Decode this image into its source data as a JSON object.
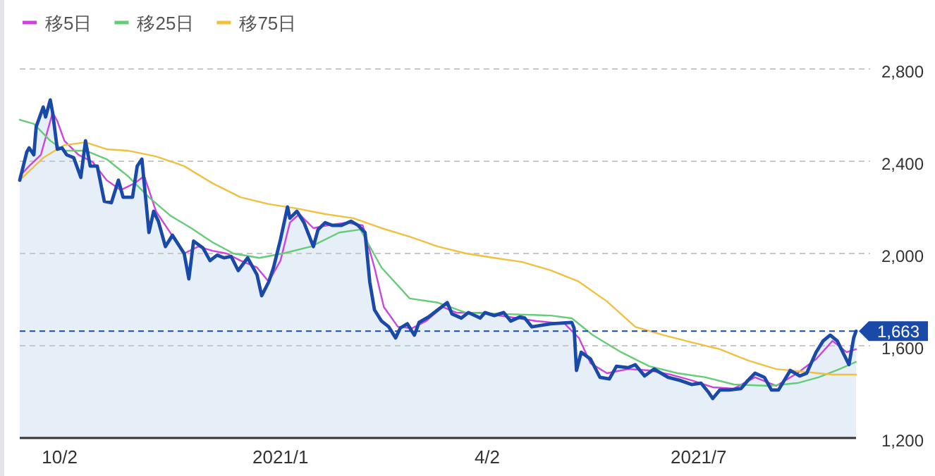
{
  "chart_data": {
    "type": "line",
    "legend": "top left",
    "grid": "y",
    "tick_labels": "xy",
    "xlim": [
      "2020-09-15",
      "2021-09-06"
    ],
    "xticks": [
      {
        "value": "2020-10-02",
        "label": "10/2"
      },
      {
        "value": "2021-01-04",
        "label": "2021/1"
      },
      {
        "value": "2021-04-02",
        "label": "4/2"
      },
      {
        "value": "2021-07-01",
        "label": "2021/7"
      }
    ],
    "ylim": [
      1200,
      2800
    ],
    "yticks": [
      {
        "value": 1200,
        "label": "1,200"
      },
      {
        "value": 1600,
        "label": "1,600"
      },
      {
        "value": 2000,
        "label": "2,000"
      },
      {
        "value": 2400,
        "label": "2,400"
      },
      {
        "value": 2800,
        "label": "2,800"
      }
    ],
    "ref_lines": [
      {
        "axis": "y",
        "value": 1663,
        "label": "1,663",
        "color": "#1a4aa8",
        "line_style": "dashed"
      }
    ],
    "series": [
      {
        "type": "area",
        "color": "#1a4aa8",
        "x": [
          "2020-09-15",
          "2020-09-18",
          "2020-09-19",
          "2020-09-21",
          "2020-09-22",
          "2020-09-25",
          "2020-09-26",
          "2020-09-28",
          "2020-09-29",
          "2020-10-01",
          "2020-10-03",
          "2020-10-05",
          "2020-10-08",
          "2020-10-11",
          "2020-10-13",
          "2020-10-15",
          "2020-10-18",
          "2020-10-21",
          "2020-10-24",
          "2020-10-27",
          "2020-10-29",
          "2020-11-02",
          "2020-11-04",
          "2020-11-06",
          "2020-11-09",
          "2020-11-11",
          "2020-11-13",
          "2020-11-16",
          "2020-11-19",
          "2020-11-24",
          "2020-11-26",
          "2020-11-28",
          "2020-12-02",
          "2020-12-05",
          "2020-12-08",
          "2020-12-11",
          "2020-12-14",
          "2020-12-17",
          "2020-12-21",
          "2020-12-25",
          "2020-12-27",
          "2020-12-30",
          "2021-01-01",
          "2021-01-04",
          "2021-01-07",
          "2021-01-08",
          "2021-01-11",
          "2021-01-14",
          "2021-01-18",
          "2021-01-20",
          "2021-01-23",
          "2021-01-26",
          "2021-01-30",
          "2021-02-03",
          "2021-02-06",
          "2021-02-09",
          "2021-02-11",
          "2021-02-13",
          "2021-02-16",
          "2021-02-19",
          "2021-02-22",
          "2021-02-24",
          "2021-02-27",
          "2021-03-02",
          "2021-03-04",
          "2021-03-08",
          "2021-03-12",
          "2021-03-16",
          "2021-03-18",
          "2021-03-22",
          "2021-03-25",
          "2021-03-30",
          "2021-04-01",
          "2021-04-05",
          "2021-04-09",
          "2021-04-12",
          "2021-04-16",
          "2021-04-18",
          "2021-04-21",
          "2021-04-29",
          "2021-05-08",
          "2021-05-09",
          "2021-05-10",
          "2021-05-12",
          "2021-05-16",
          "2021-05-20",
          "2021-05-24",
          "2021-05-27",
          "2021-06-01",
          "2021-06-04",
          "2021-06-08",
          "2021-06-12",
          "2021-06-18",
          "2021-06-23",
          "2021-06-28",
          "2021-07-02",
          "2021-07-05",
          "2021-07-07",
          "2021-07-10",
          "2021-07-14",
          "2021-07-19",
          "2021-07-22",
          "2021-07-25",
          "2021-07-29",
          "2021-08-01",
          "2021-08-04",
          "2021-08-09",
          "2021-08-13",
          "2021-08-16",
          "2021-08-20",
          "2021-08-23",
          "2021-08-26",
          "2021-08-29",
          "2021-09-03",
          "2021-09-05",
          "2021-09-06"
        ],
        "values": [
          2318,
          2440,
          2458,
          2428,
          2550,
          2635,
          2592,
          2666,
          2611,
          2452,
          2458,
          2428,
          2415,
          2330,
          2489,
          2379,
          2379,
          2226,
          2220,
          2318,
          2244,
          2244,
          2379,
          2409,
          2091,
          2183,
          2140,
          2030,
          2079,
          2000,
          1890,
          2054,
          2024,
          1969,
          1993,
          1981,
          1987,
          1926,
          1981,
          1908,
          1817,
          1877,
          1938,
          2061,
          2202,
          2153,
          2183,
          2134,
          2030,
          2104,
          2134,
          2122,
          2122,
          2140,
          2122,
          2091,
          1877,
          1756,
          1707,
          1683,
          1634,
          1677,
          1695,
          1646,
          1701,
          1725,
          1756,
          1787,
          1738,
          1720,
          1744,
          1720,
          1744,
          1731,
          1744,
          1707,
          1725,
          1720,
          1682,
          1695,
          1701,
          1676,
          1493,
          1572,
          1542,
          1463,
          1456,
          1511,
          1505,
          1518,
          1469,
          1499,
          1463,
          1450,
          1432,
          1438,
          1401,
          1371,
          1408,
          1408,
          1414,
          1450,
          1481,
          1463,
          1408,
          1408,
          1493,
          1469,
          1481,
          1572,
          1621,
          1646,
          1621,
          1518,
          1634,
          1663
        ]
      },
      {
        "type": "line",
        "name": "移5日",
        "color": "#cc44dd",
        "x": [
          "2020-09-15",
          "2020-09-19",
          "2020-09-24",
          "2020-09-29",
          "2020-10-01",
          "2020-10-04",
          "2020-10-10",
          "2020-10-16",
          "2020-10-22",
          "2020-10-28",
          "2020-11-03",
          "2020-11-07",
          "2020-11-12",
          "2020-11-18",
          "2020-11-24",
          "2020-11-30",
          "2020-12-06",
          "2020-12-12",
          "2020-12-18",
          "2020-12-25",
          "2020-12-30",
          "2021-01-04",
          "2021-01-08",
          "2021-01-12",
          "2021-01-18",
          "2021-01-24",
          "2021-02-01",
          "2021-02-08",
          "2021-02-13",
          "2021-02-17",
          "2021-02-23",
          "2021-03-01",
          "2021-03-07",
          "2021-03-14",
          "2021-03-20",
          "2021-03-30",
          "2021-04-11",
          "2021-04-23",
          "2021-05-05",
          "2021-05-11",
          "2021-05-16",
          "2021-05-23",
          "2021-06-01",
          "2021-06-10",
          "2021-06-19",
          "2021-06-28",
          "2021-07-07",
          "2021-07-16",
          "2021-07-25",
          "2021-08-03",
          "2021-08-12",
          "2021-08-20",
          "2021-08-27",
          "2021-09-02",
          "2021-09-06"
        ],
        "values": [
          2336,
          2379,
          2428,
          2611,
          2574,
          2489,
          2428,
          2397,
          2318,
          2275,
          2305,
          2336,
          2183,
          2091,
          2000,
          2030,
          2012,
          2000,
          1969,
          1939,
          1878,
          1969,
          2134,
          2171,
          2110,
          2122,
          2134,
          2122,
          1939,
          1768,
          1682,
          1676,
          1707,
          1768,
          1743,
          1743,
          1725,
          1707,
          1695,
          1634,
          1524,
          1481,
          1499,
          1493,
          1475,
          1450,
          1420,
          1414,
          1463,
          1426,
          1481,
          1542,
          1621,
          1572,
          1585
        ]
      },
      {
        "type": "line",
        "name": "移25日",
        "color": "#66cc77",
        "x": [
          "2020-09-15",
          "2020-09-21",
          "2020-09-28",
          "2020-10-04",
          "2020-10-13",
          "2020-10-22",
          "2020-10-31",
          "2020-11-09",
          "2020-11-18",
          "2020-11-27",
          "2020-12-06",
          "2020-12-15",
          "2020-12-26",
          "2021-01-05",
          "2021-01-17",
          "2021-01-29",
          "2021-02-07",
          "2021-02-16",
          "2021-02-28",
          "2021-03-12",
          "2021-03-24",
          "2021-04-11",
          "2021-04-29",
          "2021-05-08",
          "2021-05-17",
          "2021-05-29",
          "2021-06-10",
          "2021-06-22",
          "2021-07-04",
          "2021-07-16",
          "2021-07-31",
          "2021-08-12",
          "2021-08-21",
          "2021-08-30",
          "2021-09-06"
        ],
        "values": [
          2580,
          2562,
          2489,
          2446,
          2446,
          2409,
          2336,
          2244,
          2165,
          2110,
          2049,
          2000,
          1981,
          2000,
          2030,
          2091,
          2104,
          1939,
          1805,
          1787,
          1743,
          1737,
          1731,
          1719,
          1646,
          1572,
          1511,
          1481,
          1463,
          1432,
          1426,
          1438,
          1463,
          1499,
          1530
        ]
      },
      {
        "type": "line",
        "name": "移75日",
        "color": "#f0c040",
        "x": [
          "2020-09-15",
          "2020-09-25",
          "2020-10-04",
          "2020-10-13",
          "2020-10-22",
          "2020-10-31",
          "2020-11-12",
          "2020-11-24",
          "2020-12-06",
          "2020-12-18",
          "2020-12-30",
          "2021-01-11",
          "2021-01-23",
          "2021-02-04",
          "2021-02-16",
          "2021-02-28",
          "2021-03-12",
          "2021-03-24",
          "2021-04-05",
          "2021-04-17",
          "2021-04-29",
          "2021-05-11",
          "2021-05-23",
          "2021-06-04",
          "2021-06-16",
          "2021-06-28",
          "2021-07-10",
          "2021-07-22",
          "2021-08-03",
          "2021-08-15",
          "2021-08-27",
          "2021-09-06"
        ],
        "values": [
          2318,
          2415,
          2470,
          2482,
          2452,
          2446,
          2421,
          2379,
          2305,
          2244,
          2214,
          2195,
          2171,
          2153,
          2110,
          2073,
          2030,
          2000,
          1981,
          1963,
          1927,
          1878,
          1792,
          1682,
          1646,
          1615,
          1585,
          1536,
          1499,
          1487,
          1475,
          1475
        ]
      }
    ]
  }
}
